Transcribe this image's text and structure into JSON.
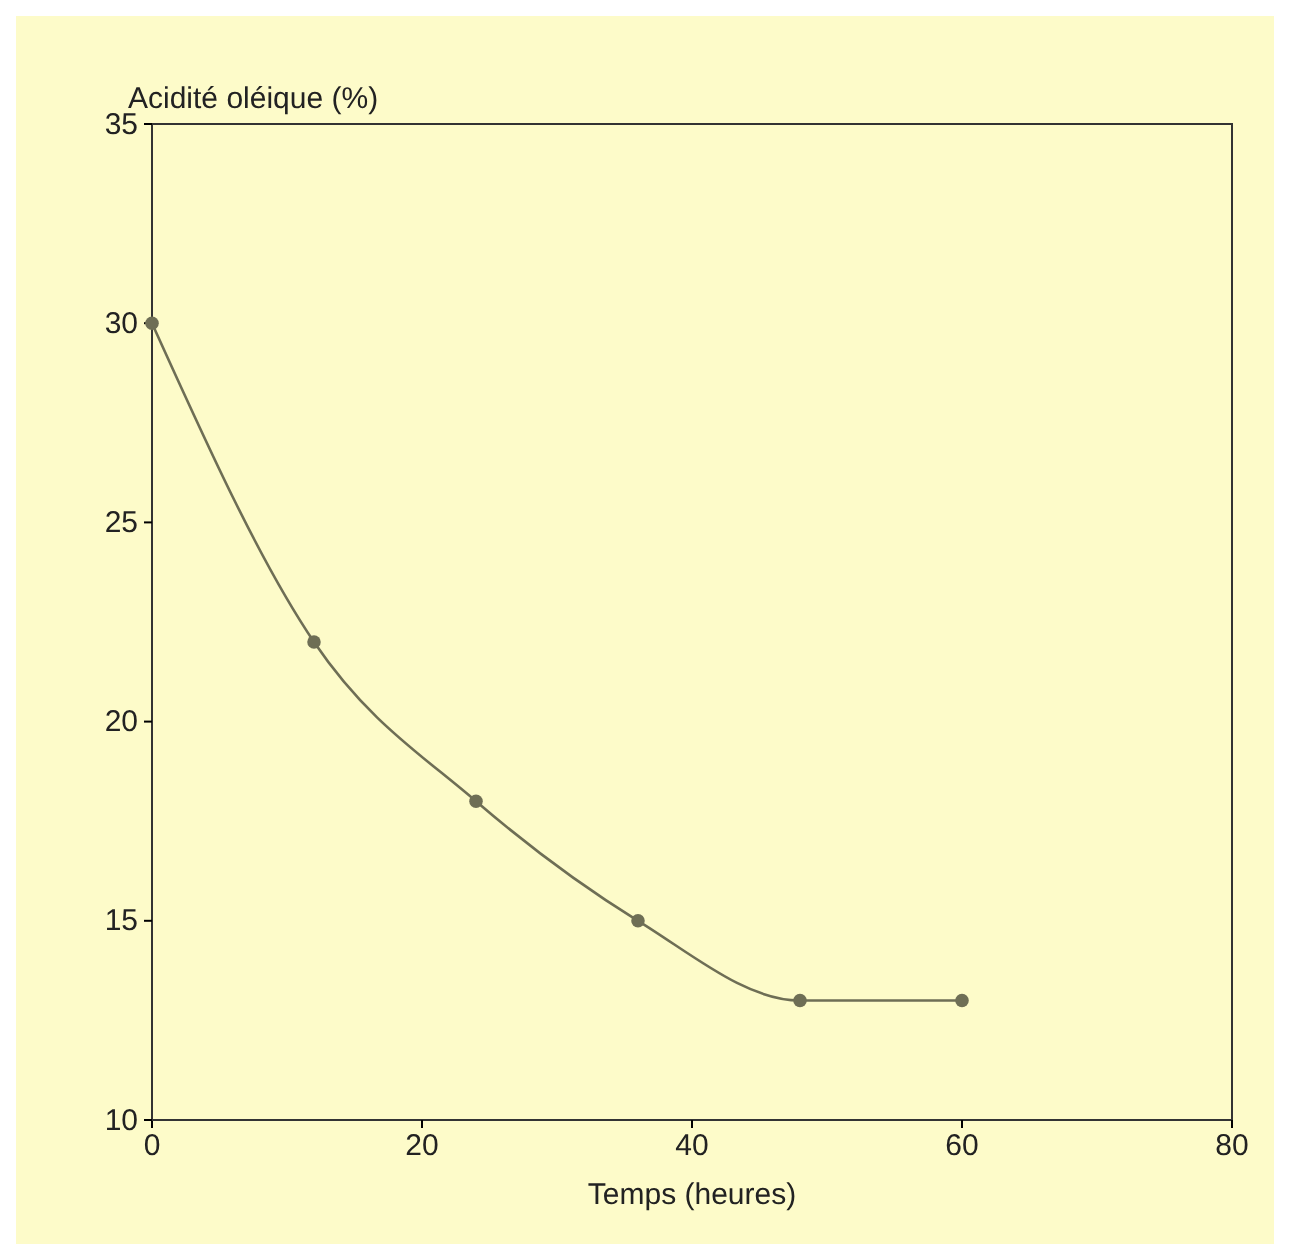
{
  "chart_data": {
    "type": "line",
    "ylabel": "Acidité oléique (%)",
    "xlabel": "Temps (heures)",
    "x": [
      0,
      12,
      24,
      36,
      48,
      60
    ],
    "series": [
      {
        "color": "#6e6e55",
        "values": [
          30,
          22,
          18,
          15,
          13,
          13
        ]
      }
    ],
    "xlim": [
      0,
      80
    ],
    "xticks": [
      0,
      20,
      40,
      60,
      80
    ],
    "ylim": [
      10,
      35
    ],
    "yticks": [
      10,
      15,
      20,
      25,
      30,
      35
    ],
    "marker": "circle",
    "line_style": "solid",
    "grid": false
  }
}
